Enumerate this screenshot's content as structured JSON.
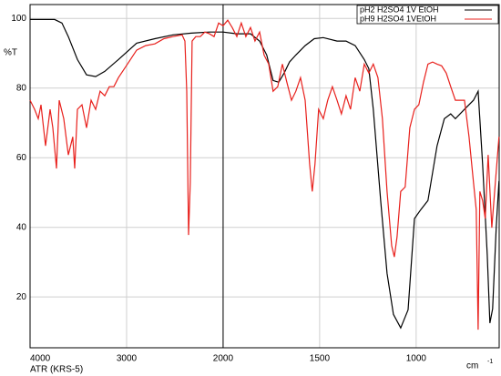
{
  "chart_data": {
    "type": "line",
    "ylabel": "%T",
    "xlabel_note": "ATR (KRS-5)",
    "xlabel": "cm",
    "xlabel_exponent": "-1",
    "xlim": [
      4000,
      570
    ],
    "ylim": [
      5.4,
      104
    ],
    "xticks": [
      4000,
      3000,
      2000,
      1500,
      1000
    ],
    "yticks": [
      100,
      80,
      60,
      40,
      20
    ],
    "xscale": {
      "break": 2000,
      "factor": 2
    },
    "grid": true,
    "vline": 2000,
    "legend": "upper right",
    "series": [
      {
        "name": "pH2 H2SO4 1V EtOH",
        "color": "#000000",
        "x": [
          4000,
          3745,
          3670,
          3604,
          3509,
          3415,
          3321,
          3226,
          3085,
          2896,
          2707,
          2519,
          2330,
          2142,
          2000,
          1929,
          1858,
          1811,
          1774,
          1741,
          1712,
          1684,
          1656,
          1623,
          1575,
          1528,
          1481,
          1410,
          1363,
          1316,
          1269,
          1245,
          1222,
          1184,
          1151,
          1118,
          1080,
          1042,
          1009,
          976,
          939,
          892,
          854,
          821,
          797,
          750,
          703,
          679,
          656,
          632,
          618,
          604,
          585,
          571
        ],
        "values": [
          99.7,
          99.7,
          98.7,
          94.8,
          88.2,
          83.8,
          83.3,
          84.8,
          88.2,
          92.9,
          94.2,
          95.3,
          95.8,
          96.1,
          96.1,
          95.6,
          95.6,
          93.5,
          89.5,
          82.2,
          81.7,
          84.3,
          87.5,
          89.5,
          92.2,
          94.2,
          94.5,
          93.5,
          93.5,
          92.2,
          88.2,
          85.6,
          73.9,
          47.7,
          26.8,
          15.0,
          11.1,
          16.3,
          42.5,
          45.1,
          47.7,
          63.4,
          71.2,
          72.6,
          71.2,
          73.9,
          76.5,
          79.1,
          58.2,
          32.1,
          12.5,
          16.6,
          40.2,
          53.3
        ]
      },
      {
        "name": "pH9 H2SO4 1VEtOH",
        "color": "#e8201c",
        "x": [
          4000,
          3953,
          3915,
          3887,
          3840,
          3792,
          3764,
          3726,
          3698,
          3651,
          3604,
          3557,
          3538,
          3509,
          3462,
          3415,
          3368,
          3321,
          3274,
          3226,
          3179,
          3132,
          3085,
          2991,
          2896,
          2802,
          2707,
          2613,
          2519,
          2425,
          2396,
          2377,
          2358,
          2340,
          2321,
          2283,
          2236,
          2189,
          2142,
          2094,
          2047,
          2000,
          1976,
          1953,
          1929,
          1906,
          1882,
          1858,
          1835,
          1811,
          1788,
          1764,
          1741,
          1717,
          1693,
          1670,
          1646,
          1623,
          1599,
          1575,
          1552,
          1538,
          1524,
          1505,
          1481,
          1458,
          1434,
          1410,
          1387,
          1363,
          1340,
          1316,
          1292,
          1269,
          1245,
          1222,
          1198,
          1175,
          1151,
          1127,
          1113,
          1099,
          1080,
          1057,
          1033,
          1009,
          986,
          962,
          939,
          915,
          892,
          868,
          844,
          821,
          797,
          774,
          750,
          726,
          703,
          689,
          679,
          670,
          656,
          642,
          627,
          608,
          590,
          571
        ],
        "values": [
          76.5,
          73.9,
          71.2,
          75.2,
          63.4,
          73.9,
          68.6,
          56.9,
          76.5,
          71.2,
          60.8,
          66.0,
          56.9,
          73.9,
          75.2,
          68.6,
          76.5,
          73.9,
          79.1,
          77.8,
          80.4,
          80.4,
          83.0,
          86.9,
          90.9,
          92.2,
          92.7,
          94.2,
          94.8,
          95.3,
          93.5,
          79.1,
          37.8,
          52.9,
          93.5,
          94.8,
          94.8,
          96.1,
          95.6,
          94.8,
          98.7,
          97.9,
          99.5,
          97.4,
          94.8,
          98.7,
          94.8,
          97.4,
          93.5,
          96.1,
          89.5,
          86.9,
          79.1,
          80.4,
          86.9,
          81.7,
          76.5,
          79.1,
          83.0,
          76.5,
          58.2,
          50.3,
          58.2,
          73.9,
          71.2,
          76.5,
          80.4,
          76.5,
          72.6,
          77.8,
          73.9,
          83.0,
          79.1,
          86.9,
          84.3,
          86.9,
          83.0,
          71.2,
          50.3,
          34.7,
          31.5,
          37.3,
          50.3,
          51.6,
          68.6,
          73.9,
          75.2,
          81.7,
          86.9,
          87.5,
          86.9,
          86.4,
          84.3,
          80.4,
          76.5,
          76.5,
          76.5,
          66.0,
          52.9,
          45.1,
          10.6,
          50.3,
          47.7,
          42.5,
          60.8,
          39.9,
          52.9,
          66.0
        ]
      }
    ]
  }
}
